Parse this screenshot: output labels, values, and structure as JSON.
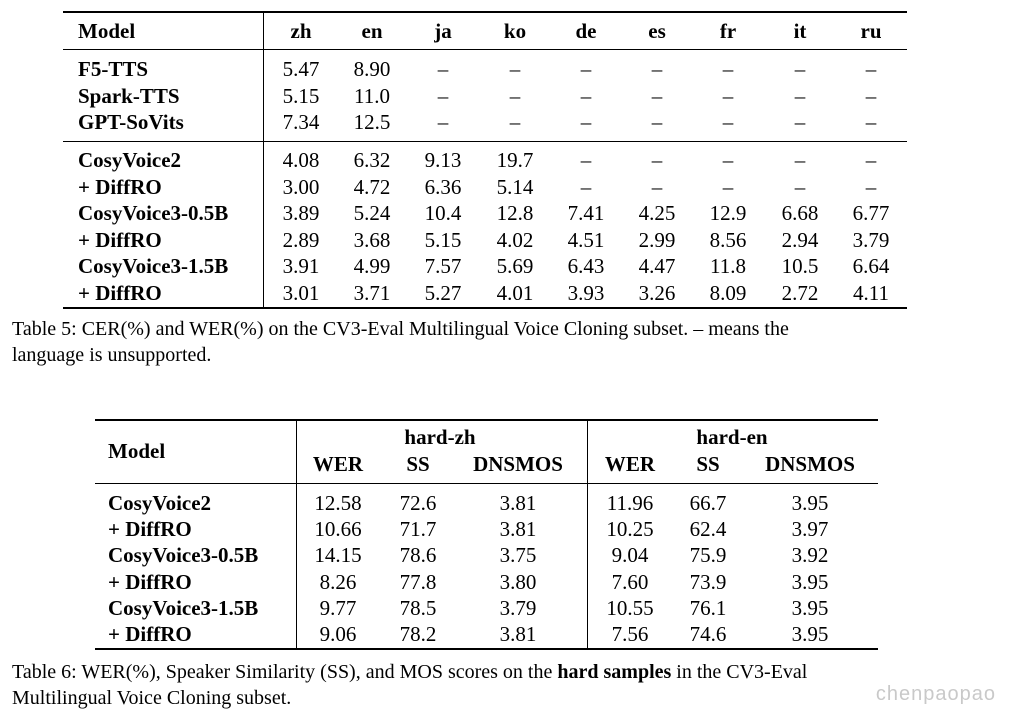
{
  "table5": {
    "header": {
      "model": "Model",
      "langs": [
        "zh",
        "en",
        "ja",
        "ko",
        "de",
        "es",
        "fr",
        "it",
        "ru"
      ]
    },
    "groups": [
      [
        {
          "model": "F5-TTS",
          "values": [
            "5.47",
            "8.90",
            "–",
            "–",
            "–",
            "–",
            "–",
            "–",
            "–"
          ]
        },
        {
          "model": "Spark-TTS",
          "values": [
            "5.15",
            "11.0",
            "–",
            "–",
            "–",
            "–",
            "–",
            "–",
            "–"
          ]
        },
        {
          "model": "GPT-SoVits",
          "values": [
            "7.34",
            "12.5",
            "–",
            "–",
            "–",
            "–",
            "–",
            "–",
            "–"
          ]
        }
      ],
      [
        {
          "model": "CosyVoice2",
          "values": [
            "4.08",
            "6.32",
            "9.13",
            "19.7",
            "–",
            "–",
            "–",
            "–",
            "–"
          ]
        },
        {
          "model": "+ DiffRO",
          "values": [
            "3.00",
            "4.72",
            "6.36",
            "5.14",
            "–",
            "–",
            "–",
            "–",
            "–"
          ]
        },
        {
          "model": "CosyVoice3-0.5B",
          "values": [
            "3.89",
            "5.24",
            "10.4",
            "12.8",
            "7.41",
            "4.25",
            "12.9",
            "6.68",
            "6.77"
          ]
        },
        {
          "model": "+ DiffRO",
          "values": [
            "2.89",
            "3.68",
            "5.15",
            "4.02",
            "4.51",
            "2.99",
            "8.56",
            "2.94",
            "3.79"
          ]
        },
        {
          "model": "CosyVoice3-1.5B",
          "values": [
            "3.91",
            "4.99",
            "7.57",
            "5.69",
            "6.43",
            "4.47",
            "11.8",
            "10.5",
            "6.64"
          ]
        },
        {
          "model": "+ DiffRO",
          "values": [
            "3.01",
            "3.71",
            "5.27",
            "4.01",
            "3.93",
            "3.26",
            "8.09",
            "2.72",
            "4.11"
          ]
        }
      ]
    ],
    "caption_line1": "Table 5: CER(%) and WER(%) on the CV3-Eval Multilingual Voice Cloning subset. – means the",
    "caption_line2": "language is unsupported."
  },
  "table6": {
    "header": {
      "model": "Model",
      "group1": "hard-zh",
      "group2": "hard-en",
      "metrics": [
        "WER",
        "SS",
        "DNSMOS",
        "WER",
        "SS",
        "DNSMOS"
      ]
    },
    "rows": [
      {
        "model": "CosyVoice2",
        "values": [
          "12.58",
          "72.6",
          "3.81",
          "11.96",
          "66.7",
          "3.95"
        ]
      },
      {
        "model": "+ DiffRO",
        "values": [
          "10.66",
          "71.7",
          "3.81",
          "10.25",
          "62.4",
          "3.97"
        ]
      },
      {
        "model": "CosyVoice3-0.5B",
        "values": [
          "14.15",
          "78.6",
          "3.75",
          "9.04",
          "75.9",
          "3.92"
        ]
      },
      {
        "model": "+ DiffRO",
        "values": [
          "8.26",
          "77.8",
          "3.80",
          "7.60",
          "73.9",
          "3.95"
        ]
      },
      {
        "model": "CosyVoice3-1.5B",
        "values": [
          "9.77",
          "78.5",
          "3.79",
          "10.55",
          "76.1",
          "3.95"
        ]
      },
      {
        "model": "+ DiffRO",
        "values": [
          "9.06",
          "78.2",
          "3.81",
          "7.56",
          "74.6",
          "3.95"
        ]
      }
    ],
    "caption_pre": "Table 6: WER(%), Speaker Similarity (SS), and MOS scores on the ",
    "caption_bold": "hard samples",
    "caption_post": " in the CV3-Eval",
    "caption_line2": "Multilingual Voice Cloning subset."
  },
  "watermark": "chenpaopao"
}
